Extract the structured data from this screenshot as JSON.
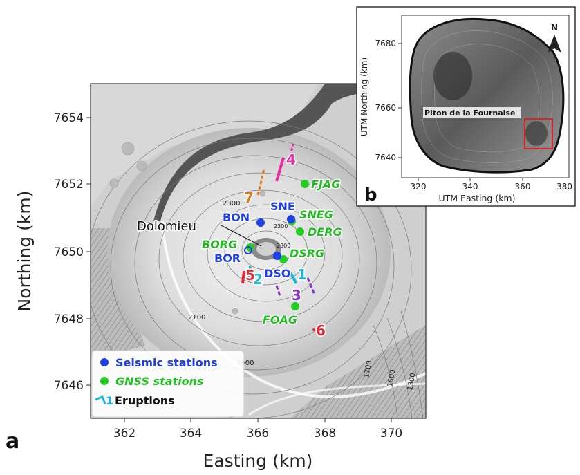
{
  "main_map": {
    "panel_letter": "a",
    "x_axis_label": "Easting (km)",
    "y_axis_label": "Northing (km)",
    "x_ticks": [
      "362",
      "364",
      "366",
      "368",
      "370"
    ],
    "y_ticks": [
      "7646",
      "7648",
      "7650",
      "7652",
      "7654"
    ],
    "x_range": [
      361,
      371
    ],
    "y_range": [
      7645,
      7655
    ],
    "contour_labels": [
      "2300",
      "2300",
      "2300",
      "2100",
      "1900",
      "1700",
      "1500",
      "1300"
    ],
    "crater_label": "Dolomieu",
    "seismic_stations": [
      {
        "name": "BON",
        "easting": 366.05,
        "northing": 7650.8
      },
      {
        "name": "SNE",
        "easting": 367.0,
        "northing": 7650.9
      },
      {
        "name": "BOR",
        "easting": 365.8,
        "northing": 7649.85
      },
      {
        "name": "DSO",
        "easting": 366.65,
        "northing": 7649.8
      }
    ],
    "gnss_stations": [
      {
        "name": "FJAG",
        "easting": 367.8,
        "northing": 7652.0
      },
      {
        "name": "SNEG",
        "easting": 367.05,
        "northing": 7650.95
      },
      {
        "name": "DERG",
        "easting": 367.4,
        "northing": 7650.55
      },
      {
        "name": "BORG",
        "easting": 365.85,
        "northing": 7650.1
      },
      {
        "name": "DSRG",
        "easting": 366.85,
        "northing": 7649.75
      },
      {
        "name": "FOAG",
        "easting": 367.2,
        "northing": 7648.35
      }
    ],
    "eruptions": [
      {
        "label": "1",
        "color": "#16b8d8"
      },
      {
        "label": "2",
        "color": "#2ab8c8"
      },
      {
        "label": "3",
        "color": "#8a32c8"
      },
      {
        "label": "4",
        "color": "#e82ea0"
      },
      {
        "label": "5",
        "color": "#e02a38"
      },
      {
        "label": "6",
        "color": "#e02a38"
      },
      {
        "label": "7",
        "color": "#e07a1a"
      }
    ],
    "legend": {
      "seismic": "Seismic stations",
      "gnss": "GNSS stations",
      "eruptions_icon_label": "1",
      "eruptions": "Eruptions"
    },
    "colors": {
      "seismic": "#1f3fe6",
      "gnss": "#22cc22",
      "frame_red": "#e0202a"
    }
  },
  "inset_map": {
    "panel_letter": "b",
    "x_axis_label": "UTM Easting (km)",
    "y_axis_label": "UTM Northing (km)",
    "x_ticks": [
      "320",
      "340",
      "360",
      "380"
    ],
    "y_ticks": [
      "7640",
      "7660",
      "7680"
    ],
    "volcano_label": "Piton de la Fournaise",
    "north_label": "N"
  }
}
